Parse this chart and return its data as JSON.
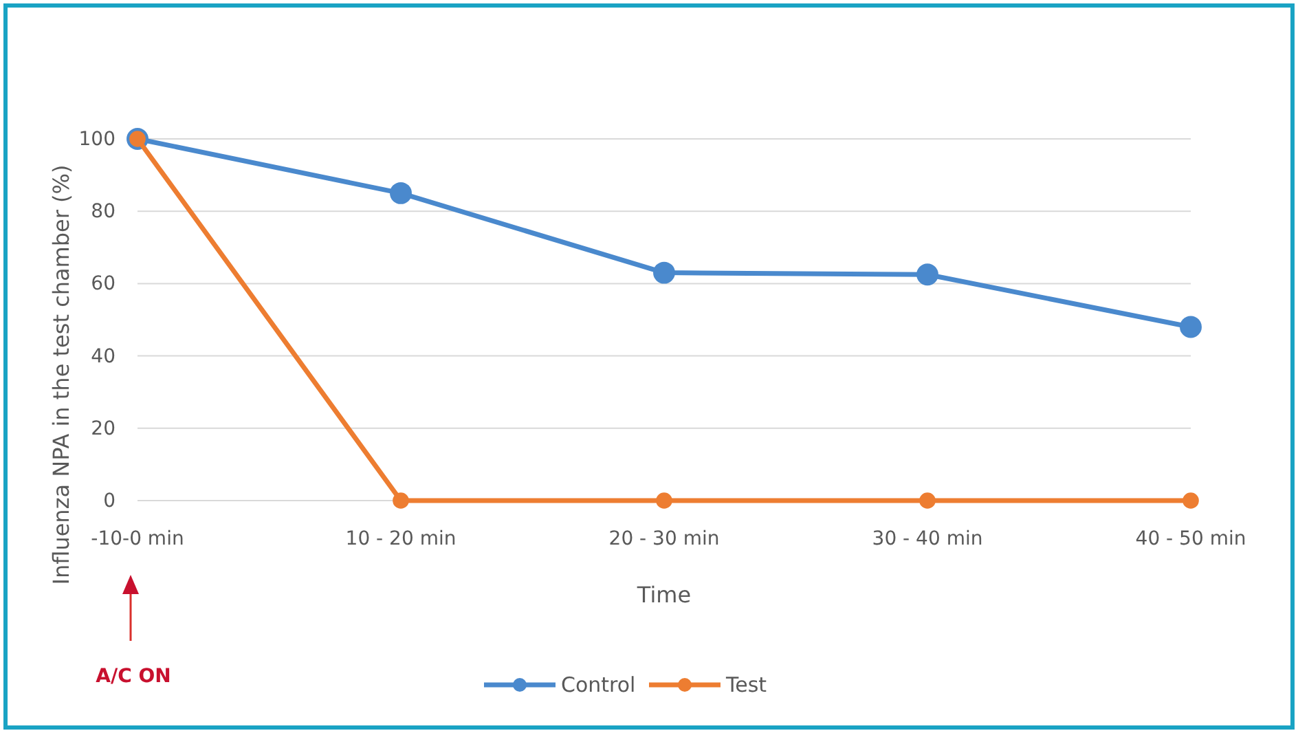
{
  "chart_data": {
    "type": "line",
    "xlabel": "Time",
    "ylabel": "Influenza NPA in the test chamber (%)",
    "categories": [
      "-10-0 min",
      "10 - 20 min",
      "20 - 30 min",
      "30 - 40 min",
      "40 - 50 min"
    ],
    "series": [
      {
        "name": "Control",
        "color": "#4a89cd",
        "values": [
          100,
          85,
          63,
          62.5,
          48
        ]
      },
      {
        "name": "Test",
        "color": "#ed7d31",
        "values": [
          100,
          0,
          0,
          0,
          0
        ]
      }
    ],
    "ylim": [
      0,
      100
    ],
    "yticks": [
      0,
      20,
      40,
      60,
      80,
      100
    ],
    "grid": "y",
    "legend": "bottom",
    "marker": "circle",
    "line_style": "solid",
    "annotations": [
      "A/C ON"
    ]
  }
}
